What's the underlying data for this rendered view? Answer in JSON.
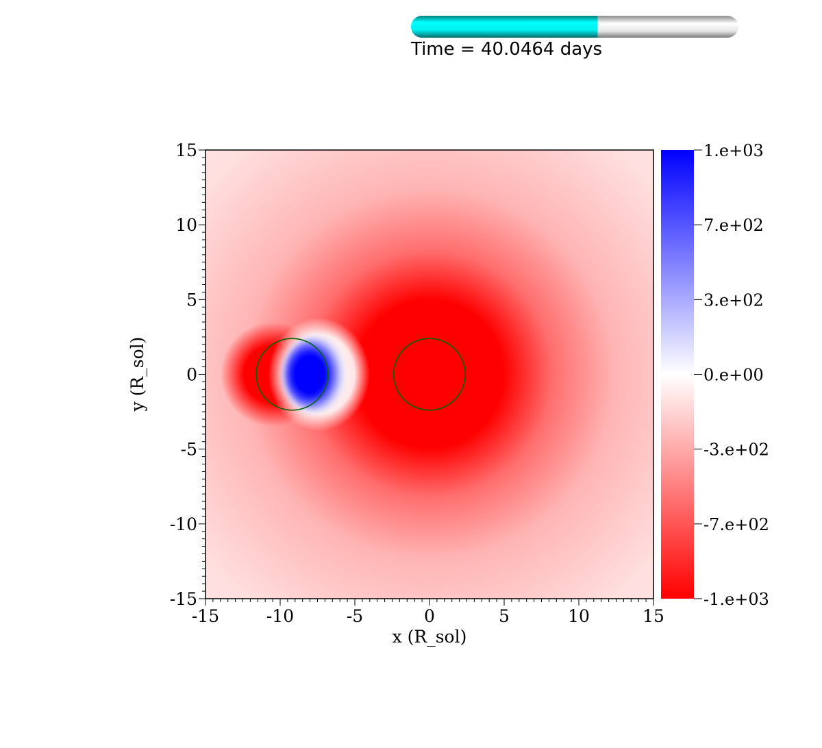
{
  "time_indicator": {
    "label": "Time = 40.0464 days",
    "progress_fraction": 0.57,
    "fill_color": "#00e5e5",
    "track_color": "#d9d9d9"
  },
  "chart_data": {
    "type": "heatmap",
    "xlabel": "x (R_sol)",
    "ylabel": "y (R_sol)",
    "xlim": [
      -15,
      15
    ],
    "ylim": [
      -15,
      15
    ],
    "xticks": [
      "-15",
      "-10",
      "-5",
      "0",
      "5",
      "10",
      "15"
    ],
    "xtick_values": [
      -15,
      -10,
      -5,
      0,
      5,
      10,
      15
    ],
    "yticks": [
      "15",
      "10",
      "5",
      "0",
      "-5",
      "-10",
      "-15"
    ],
    "ytick_values": [
      15,
      10,
      5,
      0,
      -5,
      -10,
      -15
    ],
    "colorbar": {
      "range": [
        -1000,
        1000
      ],
      "ticks": [
        "1.e+03",
        "7.e+02",
        "3.e+02",
        "0.e+00",
        "-3.e+02",
        "-7.e+02",
        "-1.e+03"
      ],
      "tick_values": [
        1000,
        666.7,
        333.3,
        0,
        -333.3,
        -666.7,
        -1000
      ],
      "max_color": "#0000ff",
      "mid_color": "#ffffff",
      "min_color": "#ff0000"
    },
    "field_features": [
      {
        "name": "secondary red lobe",
        "center_x": -10.5,
        "center_y": 0,
        "radius": 3.5,
        "value": -1000
      },
      {
        "name": "blue lobe",
        "center_x": -7.7,
        "center_y": 0,
        "radius_x": 2.0,
        "radius_y": 2.4,
        "value": 1000
      },
      {
        "name": "primary red core",
        "center_x": 0,
        "center_y": 0,
        "radius": 5.8,
        "value": -1000
      }
    ],
    "circles": [
      {
        "center_x": -9.2,
        "center_y": 0,
        "radius": 2.4,
        "color": "#006400"
      },
      {
        "center_x": 0,
        "center_y": 0,
        "radius": 2.4,
        "color": "#006400"
      }
    ]
  }
}
